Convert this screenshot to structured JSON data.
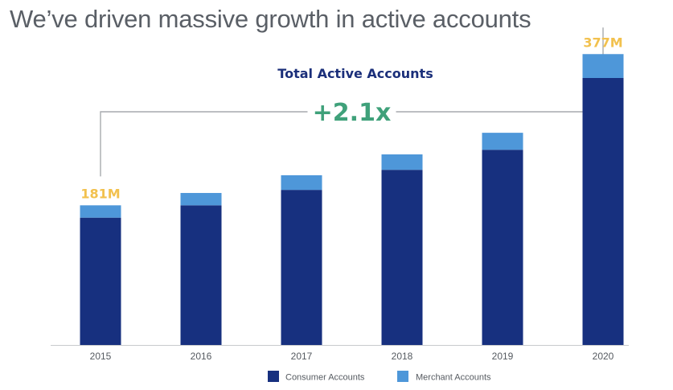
{
  "headline": "We’ve driven massive growth in active accounts",
  "chart_data": {
    "type": "bar",
    "stacked": true,
    "title": "Total Active Accounts",
    "categories": [
      "2015",
      "2016",
      "2017",
      "2018",
      "2019",
      "2020"
    ],
    "series": [
      {
        "name": "Consumer Accounts",
        "color": "#17307f",
        "values": [
          165,
          181,
          201,
          227,
          253,
          346
        ]
      },
      {
        "name": "Merchant Accounts",
        "color": "#4e97d9",
        "values": [
          16,
          16,
          19,
          20,
          22,
          31
        ]
      }
    ],
    "totals": [
      181,
      197,
      220,
      247,
      275,
      377
    ],
    "unit": "M",
    "data_labels": [
      {
        "category": "2015",
        "text": "181M"
      },
      {
        "category": "2020",
        "text": "377M"
      }
    ],
    "growth_annotation": {
      "text": "+2.1x",
      "from": "2015",
      "to": "2020"
    },
    "ylim": [
      0,
      420
    ],
    "xlabel": "",
    "ylabel": "",
    "grid": false,
    "legend": "bottom-center",
    "colors": {
      "title": "#1b2f7a",
      "growth": "#3fa17a",
      "value_labels": "#f2c14e",
      "bracket": "#a7aaae",
      "axis": "#c8cacd"
    }
  }
}
